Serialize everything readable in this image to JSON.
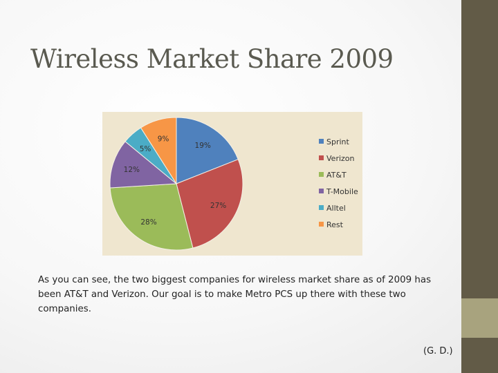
{
  "slide": {
    "title": "Wireless Market Share 2009",
    "body": "As you can see, the two biggest companies for wireless market share as of 2009 has been AT&T and Verizon.  Our goal is to make Metro PCS up there with these two companies.",
    "credit": "(G. D.)"
  },
  "theme": {
    "sidebar_dark": "#625b47",
    "sidebar_light": "#a8a37e",
    "chart_bg": "#efe6cf"
  },
  "chart_data": {
    "type": "pie",
    "title": "",
    "legend_position": "right",
    "labels": [
      "Sprint",
      "Verizon",
      "AT&T",
      "T-Mobile",
      "Alltel",
      "Rest"
    ],
    "values": [
      19,
      27,
      28,
      12,
      5,
      9
    ],
    "data_labels": [
      "19%",
      "27%",
      "28%",
      "12%",
      "5%",
      "9%"
    ],
    "colors": [
      "#4f81bd",
      "#c0504d",
      "#9bbb59",
      "#8064a2",
      "#4bacc6",
      "#f79646"
    ]
  }
}
